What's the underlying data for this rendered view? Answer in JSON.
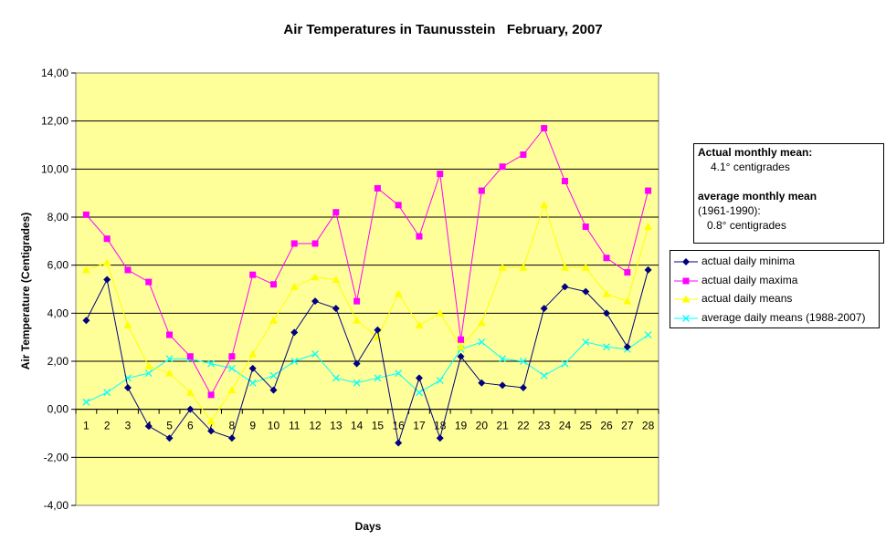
{
  "chart_data": {
    "type": "line",
    "title": "Air Temperatures in Taunusstein   February, 2007",
    "xlabel": "Days",
    "ylabel": "Air Temperature (Centigrades)",
    "ylim": [
      -4,
      14
    ],
    "y_ticks": [
      "-4,00",
      "-2,00",
      "0,00",
      "2,00",
      "4,00",
      "6,00",
      "8,00",
      "10,00",
      "12,00",
      "14,00"
    ],
    "categories": [
      "1",
      "2",
      "3",
      "4",
      "5",
      "6",
      "7",
      "8",
      "9",
      "10",
      "11",
      "12",
      "13",
      "14",
      "15",
      "16",
      "17",
      "18",
      "19",
      "20",
      "21",
      "22",
      "23",
      "24",
      "25",
      "26",
      "27",
      "28"
    ],
    "plot_background": "#ffff99",
    "grid": true,
    "legend_position": "right",
    "series": [
      {
        "name": "actual daily minima",
        "color": "#000080",
        "marker": "diamond",
        "values": [
          3.7,
          5.4,
          0.9,
          -0.7,
          -1.2,
          0.0,
          -0.9,
          -1.2,
          1.7,
          0.8,
          3.2,
          4.5,
          4.2,
          1.9,
          3.3,
          -1.4,
          1.3,
          -1.2,
          2.2,
          1.1,
          1.0,
          0.9,
          4.2,
          5.1,
          4.9,
          4.0,
          2.6,
          5.8
        ]
      },
      {
        "name": "actual daily maxima",
        "color": "#ff00ff",
        "marker": "square",
        "values": [
          8.1,
          7.1,
          5.8,
          5.3,
          3.1,
          2.2,
          0.6,
          2.2,
          5.6,
          5.2,
          6.9,
          6.9,
          8.2,
          4.5,
          9.2,
          8.5,
          7.2,
          9.8,
          2.9,
          9.1,
          10.1,
          10.6,
          11.7,
          9.5,
          7.6,
          6.3,
          5.7,
          9.1
        ]
      },
      {
        "name": "actual daily means",
        "color": "#ffff00",
        "marker": "triangle",
        "values": [
          5.8,
          6.1,
          3.5,
          1.8,
          1.5,
          0.7,
          -0.5,
          0.8,
          2.3,
          3.7,
          5.1,
          5.5,
          5.4,
          3.7,
          3.0,
          4.8,
          3.5,
          4.0,
          2.6,
          3.6,
          5.9,
          5.9,
          8.5,
          5.9,
          5.9,
          4.8,
          4.5,
          7.6
        ]
      },
      {
        "name": "average daily means (1988-2007)",
        "color": "#00ffff",
        "marker": "x",
        "values": [
          0.3,
          0.7,
          1.3,
          1.5,
          2.1,
          2.1,
          1.9,
          1.7,
          1.1,
          1.4,
          2.0,
          2.3,
          1.3,
          1.1,
          1.3,
          1.5,
          0.7,
          1.2,
          2.5,
          2.8,
          2.1,
          2.0,
          1.4,
          1.9,
          2.8,
          2.6,
          2.5,
          3.1
        ]
      }
    ]
  },
  "note": {
    "line1": "Actual monthly mean:",
    "line2": "4.1° centigrades",
    "line3": "average monthly mean",
    "line4": "(1961-1990):",
    "line5": "0.8° centigrades"
  }
}
